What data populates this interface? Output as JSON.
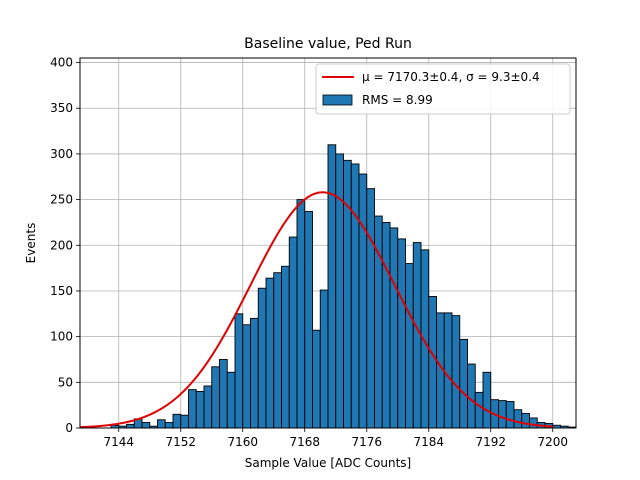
{
  "chart_data": {
    "type": "bar",
    "title": "Baseline value, Ped Run",
    "xlabel": "Sample Value [ADC Counts]",
    "ylabel": "Events",
    "xlim": [
      7139,
      7203
    ],
    "ylim": [
      0,
      405
    ],
    "x_ticks": [
      7144,
      7152,
      7160,
      7168,
      7176,
      7184,
      7192,
      7200
    ],
    "y_ticks": [
      0,
      50,
      100,
      150,
      200,
      250,
      300,
      350,
      400
    ],
    "grid": true,
    "legend_position": "top-right",
    "bar_color": "#1f77b4",
    "bar_edge_color": "#000000",
    "fit_color": "#e00000",
    "histogram": {
      "name": "RMS = 8.99",
      "bin_start": 7143,
      "bin_width": 1,
      "counts": [
        3,
        2,
        4,
        10,
        6,
        2,
        9,
        6,
        15,
        14,
        42,
        40,
        46,
        67,
        75,
        61,
        125,
        113,
        120,
        153,
        164,
        170,
        177,
        209,
        250,
        237,
        107,
        151,
        310,
        300,
        293,
        289,
        278,
        262,
        232,
        225,
        219,
        207,
        180,
        203,
        195,
        144,
        126,
        126,
        123,
        97,
        70,
        39,
        61,
        31,
        30,
        29,
        20,
        16,
        11,
        6,
        5,
        3,
        2,
        1
      ]
    },
    "fit": {
      "name": "μ = 7170.3±0.4, σ = 9.3±0.4",
      "mu": 7170.3,
      "sigma": 9.3,
      "amplitude": 258,
      "x_start": 7139,
      "x_end": 7200
    }
  },
  "legend": {
    "fit_label": "μ = 7170.3±0.4, σ = 9.3±0.4",
    "hist_label": "RMS = 8.99"
  }
}
